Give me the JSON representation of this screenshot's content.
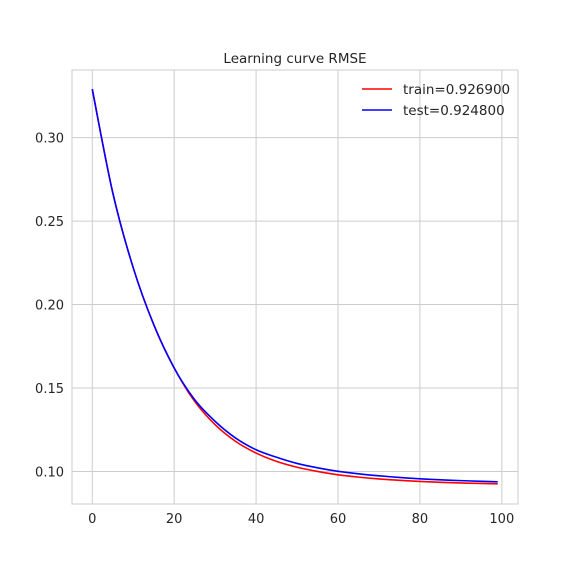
{
  "chart_data": {
    "type": "line",
    "title": "Learning curve RMSE",
    "xlabel": "",
    "ylabel": "",
    "xlim": [
      -4.95,
      103.95
    ],
    "ylim": [
      0.0805,
      0.3405
    ],
    "xticks": [
      0,
      20,
      40,
      60,
      80,
      100
    ],
    "xtick_labels": [
      "0",
      "20",
      "40",
      "60",
      "80",
      "100"
    ],
    "yticks": [
      0.1,
      0.15,
      0.2,
      0.25,
      0.3
    ],
    "ytick_labels": [
      "0.10",
      "0.15",
      "0.20",
      "0.25",
      "0.30"
    ],
    "grid": true,
    "legend_position": "top-right",
    "series": [
      {
        "name": "train=0.926900",
        "color": "#ff0000",
        "x": [
          0,
          5,
          10,
          15,
          20,
          25,
          30,
          35,
          40,
          45,
          50,
          55,
          60,
          65,
          70,
          75,
          80,
          85,
          90,
          95,
          99
        ],
        "y": [
          0.329,
          0.267,
          0.222,
          0.188,
          0.162,
          0.142,
          0.128,
          0.118,
          0.111,
          0.106,
          0.1025,
          0.1,
          0.098,
          0.0966,
          0.0955,
          0.0947,
          0.094,
          0.0935,
          0.0931,
          0.0928,
          0.0926
        ]
      },
      {
        "name": "test=0.924800",
        "color": "#0000ff",
        "x": [
          0,
          5,
          10,
          15,
          20,
          25,
          30,
          35,
          40,
          45,
          50,
          55,
          60,
          65,
          70,
          75,
          80,
          85,
          90,
          95,
          99
        ],
        "y": [
          0.329,
          0.267,
          0.222,
          0.188,
          0.162,
          0.143,
          0.13,
          0.12,
          0.113,
          0.1085,
          0.1048,
          0.1022,
          0.1001,
          0.0986,
          0.0974,
          0.0964,
          0.0956,
          0.095,
          0.0945,
          0.0941,
          0.0938
        ]
      }
    ]
  }
}
